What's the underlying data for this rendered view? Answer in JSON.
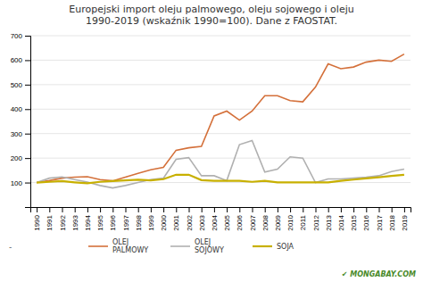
{
  "chart_data": {
    "type": "line",
    "title": "Europejski import oleju palmowego, oleju sojowego i oleju\n1990-2019 (wskaźnik 1990=100). Dane z FAOSTAT.",
    "x": [
      1990,
      1991,
      1992,
      1993,
      1994,
      1995,
      1996,
      1997,
      1998,
      1999,
      2000,
      2001,
      2002,
      2003,
      2004,
      2005,
      2006,
      2007,
      2008,
      2009,
      2010,
      2011,
      2012,
      2013,
      2014,
      2015,
      2016,
      2017,
      2018,
      2019
    ],
    "series": [
      {
        "name": "OLEJ\nPALMOWY",
        "color": "#d4703a",
        "values": [
          100,
          108,
          118,
          122,
          124,
          112,
          107,
          122,
          138,
          152,
          162,
          232,
          242,
          248,
          372,
          392,
          355,
          392,
          455,
          455,
          435,
          430,
          490,
          585,
          565,
          572,
          592,
          600,
          595,
          625
        ]
      },
      {
        "name": "OLEJ\nSOJOWY",
        "color": "#b0b0b0",
        "values": [
          100,
          118,
          123,
          112,
          102,
          88,
          78,
          88,
          100,
          112,
          118,
          195,
          202,
          128,
          128,
          108,
          255,
          272,
          143,
          155,
          205,
          200,
          100,
          115,
          115,
          118,
          122,
          128,
          145,
          155
        ]
      },
      {
        "name": "SOJA",
        "color": "#c8b000",
        "values": [
          100,
          103,
          106,
          101,
          97,
          103,
          106,
          109,
          112,
          109,
          114,
          132,
          132,
          110,
          107,
          107,
          107,
          103,
          107,
          101,
          101,
          101,
          101,
          101,
          107,
          112,
          117,
          122,
          127,
          132
        ]
      }
    ],
    "xlim": [
      1989.5,
      2019.5
    ],
    "xticks": [
      1990,
      1991,
      1992,
      1993,
      1994,
      1995,
      1996,
      1997,
      1998,
      1999,
      2000,
      2001,
      2002,
      2003,
      2004,
      2005,
      2006,
      2007,
      2008,
      2009,
      2010,
      2011,
      2012,
      2013,
      2014,
      2015,
      2016,
      2017,
      2018,
      2019
    ],
    "ylim": [
      0,
      700
    ],
    "yticks": [
      100,
      200,
      300,
      400,
      500,
      600,
      700
    ],
    "grid": true,
    "legend": "bottom",
    "annotations": [
      "-",
      "✔ MONGABAY.COM"
    ]
  }
}
